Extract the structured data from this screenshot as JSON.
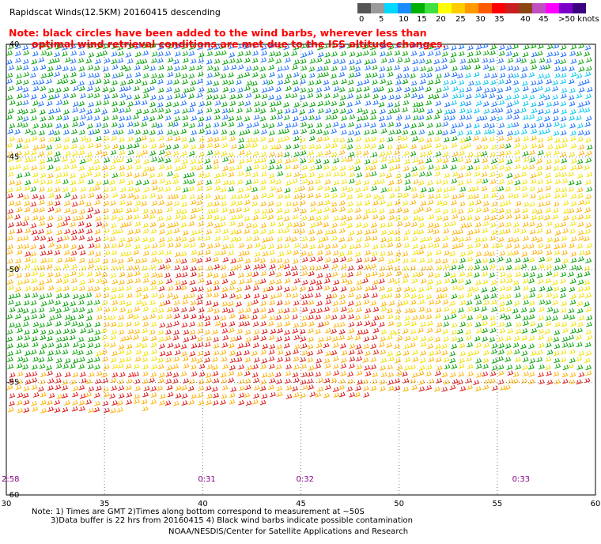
{
  "title": "Rapidscat Winds(12.5KM) 20160415 descending",
  "note": {
    "line1": "Note: black circles have been added to the wind barbs, wherever less than",
    "line2": "optimal wind retrieval conditions are met due to the ISS altitude changes."
  },
  "legend": {
    "labels": [
      "0",
      "5",
      "10",
      "15",
      "20",
      "25",
      "30",
      "35",
      "40",
      "45",
      ">50 knots"
    ],
    "colors": [
      "#555555",
      "#9a9a9a",
      "#00d8ff",
      "#1a8cff",
      "#00b000",
      "#40e040",
      "#ffff00",
      "#ffcc00",
      "#ff9900",
      "#ff5a00",
      "#ff0000",
      "#c81e1e",
      "#8b4513",
      "#c04fc0",
      "#ff00ff",
      "#7a00c8",
      "#3c0080"
    ]
  },
  "map": {
    "lon_labels": [
      "30",
      "35",
      "40",
      "45",
      "50",
      "55",
      "60"
    ],
    "lat_labels": [
      "-40",
      "-45",
      "-50",
      "-55",
      "-60"
    ],
    "lat_values": [
      -40,
      -45,
      -50,
      -55,
      -60
    ],
    "lon_values": [
      30,
      35,
      40,
      45,
      50,
      55,
      60
    ],
    "times": [
      "2:58",
      "0:31",
      "0:32",
      "0:33"
    ],
    "times_lon": [
      30,
      40,
      45,
      56
    ],
    "time_color": "#8b008b",
    "grid": true,
    "lon_range": [
      30,
      60
    ],
    "lat_range": [
      -60,
      -40
    ]
  },
  "footer": {
    "line1": "Note: 1) Times are GMT 2)Times along bottom correspond to measurement at ~50S",
    "line2": "3)Data buffer is 22 hrs from 20160415 4) Black wind barbs indicate possible contamination",
    "line3": "NOAA/NESDIS/Center for Satellite Applications and Research"
  }
}
